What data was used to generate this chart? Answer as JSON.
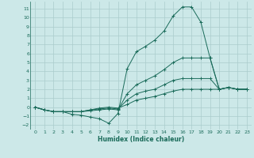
{
  "xlabel": "Humidex (Indice chaleur)",
  "background_color": "#cce8e8",
  "grid_color": "#aacccc",
  "line_color": "#1a6b5a",
  "xlim": [
    -0.5,
    23.5
  ],
  "ylim": [
    -2.5,
    11.8
  ],
  "xticks": [
    0,
    1,
    2,
    3,
    4,
    5,
    6,
    7,
    8,
    9,
    10,
    11,
    12,
    13,
    14,
    15,
    16,
    17,
    18,
    19,
    20,
    21,
    22,
    23
  ],
  "yticks": [
    -2,
    -1,
    0,
    1,
    2,
    3,
    4,
    5,
    6,
    7,
    8,
    9,
    10,
    11
  ],
  "series": [
    {
      "x": [
        0,
        1,
        2,
        3,
        4,
        5,
        6,
        7,
        8,
        9,
        10,
        11,
        12,
        13,
        14,
        15,
        16,
        17,
        18,
        19,
        20,
        21,
        22,
        23
      ],
      "y": [
        0,
        -0.3,
        -0.5,
        -0.5,
        -0.8,
        -0.9,
        -1.1,
        -1.3,
        -1.8,
        -0.7,
        4.3,
        6.2,
        6.8,
        7.5,
        8.5,
        10.2,
        11.2,
        11.2,
        9.5,
        5.5,
        2.0,
        2.2,
        2.0,
        2.0
      ]
    },
    {
      "x": [
        0,
        1,
        2,
        3,
        4,
        5,
        6,
        7,
        8,
        9,
        10,
        11,
        12,
        13,
        14,
        15,
        16,
        17,
        18,
        19,
        20,
        21,
        22,
        23
      ],
      "y": [
        0,
        -0.3,
        -0.5,
        -0.5,
        -0.5,
        -0.5,
        -0.4,
        -0.3,
        -0.2,
        -0.3,
        1.5,
        2.5,
        3.0,
        3.5,
        4.2,
        5.0,
        5.5,
        5.5,
        5.5,
        5.5,
        2.0,
        2.2,
        2.0,
        2.0
      ]
    },
    {
      "x": [
        0,
        1,
        2,
        3,
        4,
        5,
        6,
        7,
        8,
        9,
        10,
        11,
        12,
        13,
        14,
        15,
        16,
        17,
        18,
        19,
        20,
        21,
        22,
        23
      ],
      "y": [
        0,
        -0.3,
        -0.5,
        -0.5,
        -0.5,
        -0.5,
        -0.3,
        -0.2,
        -0.1,
        -0.2,
        0.8,
        1.5,
        1.8,
        2.0,
        2.5,
        3.0,
        3.2,
        3.2,
        3.2,
        3.2,
        2.0,
        2.2,
        2.0,
        2.0
      ]
    },
    {
      "x": [
        0,
        1,
        2,
        3,
        4,
        5,
        6,
        7,
        8,
        9,
        10,
        11,
        12,
        13,
        14,
        15,
        16,
        17,
        18,
        19,
        20,
        21,
        22,
        23
      ],
      "y": [
        0,
        -0.3,
        -0.5,
        -0.5,
        -0.5,
        -0.5,
        -0.3,
        -0.1,
        0.0,
        -0.1,
        0.3,
        0.8,
        1.0,
        1.2,
        1.5,
        1.8,
        2.0,
        2.0,
        2.0,
        2.0,
        2.0,
        2.2,
        2.0,
        2.0
      ]
    }
  ]
}
